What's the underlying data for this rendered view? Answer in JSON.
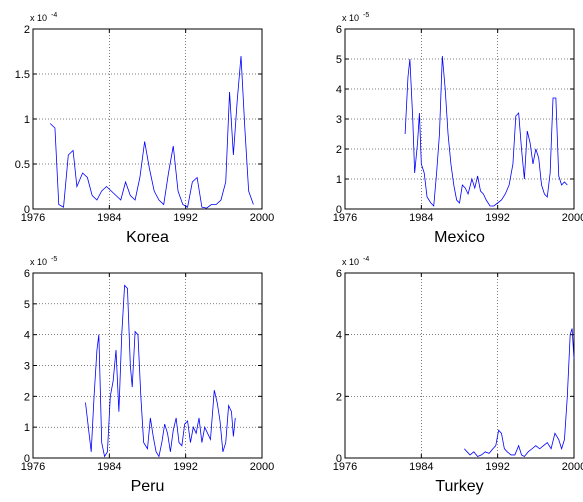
{
  "chart_data": [
    {
      "type": "line",
      "title": "Korea",
      "scale_label": {
        "base": "x 10",
        "exponent": "-4"
      },
      "color": "#0000ff",
      "grid": true,
      "xlim": [
        1976,
        2000
      ],
      "xticks": [
        1976,
        1984,
        1992,
        2000
      ],
      "ylim": [
        0,
        2
      ],
      "yticks": [
        0,
        0.5,
        1,
        1.5,
        2
      ],
      "x": [
        1977.8,
        1978.3,
        1978.7,
        1979.2,
        1979.7,
        1980.2,
        1980.6,
        1981.2,
        1981.7,
        1982.2,
        1982.7,
        1983.2,
        1983.7,
        1984.2,
        1984.7,
        1985.2,
        1985.7,
        1986.2,
        1986.7,
        1987.2,
        1987.7,
        1988.2,
        1988.7,
        1989.2,
        1989.7,
        1990.2,
        1990.7,
        1991.2,
        1991.7,
        1992.2,
        1992.7,
        1993.2,
        1993.7,
        1994.2,
        1994.7,
        1995.2,
        1995.7,
        1996.2,
        1996.6,
        1997.0,
        1997.4,
        1997.8,
        1998.2,
        1998.6,
        1999.1
      ],
      "values": [
        0.95,
        0.9,
        0.05,
        0.02,
        0.6,
        0.65,
        0.25,
        0.4,
        0.35,
        0.15,
        0.1,
        0.2,
        0.25,
        0.2,
        0.15,
        0.1,
        0.3,
        0.15,
        0.1,
        0.35,
        0.75,
        0.45,
        0.2,
        0.1,
        0.05,
        0.4,
        0.7,
        0.2,
        0.05,
        0.02,
        0.3,
        0.35,
        0.02,
        0.01,
        0.05,
        0.05,
        0.1,
        0.3,
        1.3,
        0.6,
        1.2,
        1.7,
        0.9,
        0.2,
        0.05
      ]
    },
    {
      "type": "line",
      "title": "Mexico",
      "scale_label": {
        "base": "x 10",
        "exponent": "-5"
      },
      "color": "#0000ff",
      "grid": true,
      "xlim": [
        1976,
        2000
      ],
      "xticks": [
        1976,
        1984,
        1992,
        2000
      ],
      "ylim": [
        0,
        6
      ],
      "yticks": [
        0,
        1,
        2,
        3,
        4,
        5,
        6
      ],
      "x": [
        1982.3,
        1982.6,
        1982.8,
        1983.1,
        1983.3,
        1983.6,
        1983.8,
        1984.0,
        1984.3,
        1984.6,
        1985.0,
        1985.3,
        1985.6,
        1985.9,
        1986.2,
        1986.5,
        1986.8,
        1987.1,
        1987.4,
        1987.7,
        1988.0,
        1988.3,
        1988.6,
        1988.9,
        1989.3,
        1989.6,
        1989.9,
        1990.2,
        1990.5,
        1990.8,
        1991.2,
        1991.6,
        1992.0,
        1992.4,
        1992.8,
        1993.2,
        1993.6,
        1993.9,
        1994.2,
        1994.5,
        1994.8,
        1995.1,
        1995.4,
        1995.7,
        1996.0,
        1996.3,
        1996.6,
        1996.9,
        1997.2,
        1997.5,
        1997.8,
        1998.1,
        1998.4,
        1998.7,
        1999.0,
        1999.3
      ],
      "values": [
        2.5,
        4.4,
        5.0,
        3.0,
        1.2,
        2.2,
        3.2,
        1.5,
        1.2,
        0.4,
        0.2,
        0.1,
        1.2,
        2.5,
        5.1,
        4.0,
        2.5,
        1.5,
        0.8,
        0.3,
        0.2,
        0.8,
        0.7,
        0.5,
        1.0,
        0.7,
        1.1,
        0.6,
        0.5,
        0.3,
        0.1,
        0.1,
        0.2,
        0.3,
        0.5,
        0.8,
        1.5,
        3.1,
        3.2,
        2.0,
        1.0,
        2.6,
        2.2,
        1.5,
        2.0,
        1.7,
        0.8,
        0.5,
        0.4,
        1.2,
        3.7,
        3.7,
        1.1,
        0.8,
        0.9,
        0.8
      ]
    },
    {
      "type": "line",
      "title": "Peru",
      "scale_label": {
        "base": "x 10",
        "exponent": "-5"
      },
      "color": "#0000ff",
      "grid": true,
      "xlim": [
        1976,
        2000
      ],
      "xticks": [
        1976,
        1984,
        1992,
        2000
      ],
      "ylim": [
        0,
        6
      ],
      "yticks": [
        0,
        1,
        2,
        3,
        4,
        5,
        6
      ],
      "x": [
        1981.5,
        1981.8,
        1982.1,
        1982.4,
        1982.7,
        1982.9,
        1983.2,
        1983.5,
        1983.8,
        1984.1,
        1984.4,
        1984.7,
        1985.0,
        1985.3,
        1985.6,
        1985.9,
        1986.2,
        1986.4,
        1986.7,
        1987.0,
        1987.3,
        1987.6,
        1988.0,
        1988.3,
        1988.6,
        1988.9,
        1989.2,
        1989.5,
        1989.8,
        1990.1,
        1990.4,
        1990.7,
        1991.0,
        1991.3,
        1991.6,
        1991.9,
        1992.2,
        1992.5,
        1992.8,
        1993.1,
        1993.4,
        1993.7,
        1994.0,
        1994.3,
        1994.6,
        1995.0,
        1995.3,
        1995.6,
        1995.9,
        1996.2,
        1996.5,
        1996.8,
        1997.0,
        1997.2
      ],
      "values": [
        1.8,
        1.0,
        0.2,
        2.0,
        3.5,
        4.0,
        0.5,
        0.05,
        0.2,
        2.0,
        2.5,
        3.5,
        1.5,
        4.0,
        5.6,
        5.5,
        3.0,
        2.3,
        4.1,
        4.0,
        2.0,
        0.5,
        0.3,
        1.3,
        0.7,
        0.2,
        0.05,
        0.5,
        1.1,
        0.8,
        0.2,
        0.9,
        1.3,
        0.5,
        0.4,
        1.1,
        1.2,
        0.5,
        1.0,
        0.8,
        1.3,
        0.5,
        1.0,
        0.8,
        0.6,
        2.2,
        1.8,
        1.2,
        0.2,
        0.5,
        1.7,
        1.5,
        0.7,
        1.3
      ]
    },
    {
      "type": "line",
      "title": "Turkey",
      "scale_label": {
        "base": "x 10",
        "exponent": "-4"
      },
      "color": "#0000ff",
      "grid": true,
      "xlim": [
        1976,
        2000
      ],
      "xticks": [
        1976,
        1984,
        1992,
        2000
      ],
      "ylim": [
        0,
        6
      ],
      "yticks": [
        0,
        2,
        4,
        6
      ],
      "x": [
        1988.5,
        1988.8,
        1989.1,
        1989.5,
        1989.9,
        1990.3,
        1990.7,
        1991.1,
        1991.5,
        1991.8,
        1992.1,
        1992.4,
        1992.7,
        1993.0,
        1993.4,
        1993.8,
        1994.2,
        1994.5,
        1994.8,
        1995.2,
        1995.6,
        1996.0,
        1996.4,
        1996.8,
        1997.2,
        1997.6,
        1998.0,
        1998.4,
        1998.7,
        1999.0,
        1999.3,
        1999.6,
        1999.8,
        2000.0
      ],
      "values": [
        0.3,
        0.2,
        0.1,
        0.2,
        0.05,
        0.1,
        0.2,
        0.15,
        0.3,
        0.4,
        0.9,
        0.8,
        0.3,
        0.2,
        0.1,
        0.1,
        0.4,
        0.1,
        0.05,
        0.2,
        0.3,
        0.4,
        0.3,
        0.4,
        0.5,
        0.3,
        0.8,
        0.6,
        0.3,
        0.6,
        2.0,
        4.0,
        4.2,
        3.2
      ]
    }
  ]
}
